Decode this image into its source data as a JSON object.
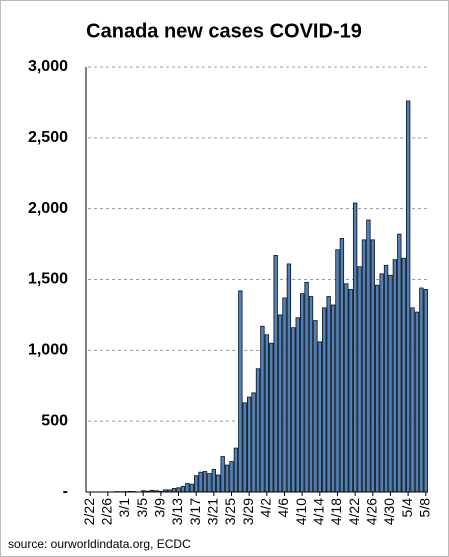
{
  "chart_data": {
    "type": "bar",
    "title": "Canada new cases COVID-19",
    "source": "source: ourworldindata.org, ECDC",
    "categories": [
      "2/22",
      null,
      null,
      null,
      "2/26",
      null,
      null,
      null,
      "3/1",
      null,
      null,
      null,
      "3/5",
      null,
      null,
      null,
      "3/9",
      null,
      null,
      null,
      "3/13",
      null,
      null,
      null,
      "3/17",
      null,
      null,
      null,
      "3/21",
      null,
      null,
      null,
      "3/25",
      null,
      null,
      null,
      "3/29",
      null,
      null,
      null,
      "4/2",
      null,
      null,
      null,
      "4/6",
      null,
      null,
      null,
      "4/10",
      null,
      null,
      null,
      "4/14",
      null,
      null,
      null,
      "4/18",
      null,
      null,
      null,
      "4/22",
      null,
      null,
      null,
      "4/26",
      null,
      null,
      null,
      "4/30",
      null,
      null,
      null,
      "5/4",
      null,
      null,
      null,
      "5/8"
    ],
    "values": [
      0,
      0,
      1,
      0,
      1,
      1,
      3,
      2,
      3,
      4,
      3,
      0,
      9,
      6,
      12,
      9,
      5,
      15,
      15,
      25,
      30,
      40,
      60,
      55,
      115,
      140,
      145,
      130,
      160,
      120,
      250,
      190,
      215,
      310,
      1420,
      630,
      670,
      700,
      870,
      1170,
      1110,
      1050,
      1670,
      1250,
      1370,
      1610,
      1160,
      1230,
      1400,
      1480,
      1380,
      1210,
      1060,
      1300,
      1380,
      1320,
      1710,
      1790,
      1470,
      1430,
      2040,
      1590,
      1780,
      1920,
      1780,
      1460,
      1540,
      1600,
      1530,
      1640,
      1820,
      1650,
      2760,
      1300,
      1270,
      1440,
      1430
    ],
    "color": "#4f81bd",
    "ylim": [
      0,
      3000
    ],
    "yticks": [
      {
        "value": 0,
        "label": "-"
      },
      500,
      {
        "value": 1000,
        "label": "1,000"
      },
      {
        "value": 1500,
        "label": "1,500"
      },
      {
        "value": 2000,
        "label": "2,000"
      },
      {
        "value": 2500,
        "label": "2,500"
      },
      {
        "value": 3000,
        "label": "3,000"
      }
    ],
    "grid": true
  }
}
